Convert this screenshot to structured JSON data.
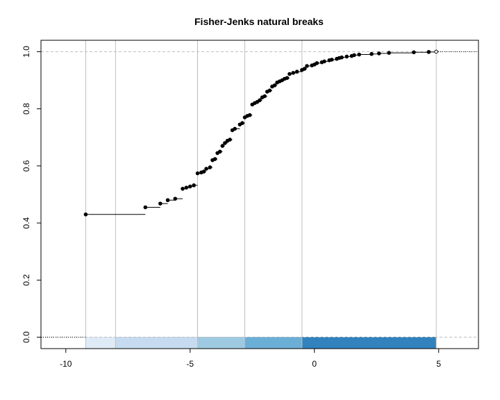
{
  "chart_data": {
    "type": "line",
    "subtype": "empirical-cdf-step",
    "title": "Fisher-Jenks natural breaks",
    "xlabel": "",
    "ylabel": "",
    "xlim": [
      -11,
      6.6
    ],
    "ylim": [
      -0.04,
      1.04
    ],
    "x_ticks": [
      -10,
      -5,
      0,
      5
    ],
    "x_tick_labels": [
      "-10",
      "-5",
      "0",
      "5"
    ],
    "y_ticks": [
      0.0,
      0.2,
      0.4,
      0.6,
      0.8,
      1.0
    ],
    "y_tick_labels": [
      "0.0",
      "0.2",
      "0.4",
      "0.6",
      "0.8",
      "1.0"
    ],
    "grid": false,
    "reference_lines_y": [
      0,
      1
    ],
    "breaks": [
      -9.2,
      -8.0,
      -4.7,
      -2.8,
      -0.5,
      4.9
    ],
    "class_colors": [
      "#deebf7",
      "#c6dbef",
      "#9ecae1",
      "#6baed6",
      "#3182bd"
    ],
    "colors": {
      "points": "#000000",
      "steps": "#000000",
      "breaks": "#bebebe",
      "reference": "#bebebe"
    },
    "series": [
      {
        "x": [
          -9.2,
          -6.8,
          -6.2,
          -5.9,
          -5.6,
          -5.3,
          -5.15,
          -5.0,
          -4.85,
          -4.7,
          -4.55,
          -4.45,
          -4.35,
          -4.2,
          -4.1,
          -4.0,
          -3.9,
          -3.8,
          -3.7,
          -3.6,
          -3.5,
          -3.4,
          -3.3,
          -3.2,
          -3.0,
          -2.9,
          -2.8,
          -2.7,
          -2.6,
          -2.5,
          -2.4,
          -2.3,
          -2.2,
          -2.1,
          -2.0,
          -1.9,
          -1.8,
          -1.7,
          -1.6,
          -1.5,
          -1.4,
          -1.3,
          -1.2,
          -1.1,
          -1.0,
          -0.85,
          -0.7,
          -0.5,
          -0.4,
          -0.3,
          -0.1,
          0.0,
          0.1,
          0.3,
          0.4,
          0.6,
          0.7,
          0.9,
          1.0,
          1.1,
          1.3,
          1.5,
          1.6,
          1.8,
          2.3,
          2.6,
          3.0,
          4.0,
          4.6,
          4.9
        ],
        "y": [
          0.43,
          0.455,
          0.468,
          0.48,
          0.485,
          0.52,
          0.524,
          0.528,
          0.532,
          0.574,
          0.577,
          0.58,
          0.59,
          0.595,
          0.62,
          0.624,
          0.645,
          0.65,
          0.67,
          0.68,
          0.688,
          0.692,
          0.725,
          0.73,
          0.745,
          0.75,
          0.77,
          0.775,
          0.778,
          0.815,
          0.82,
          0.824,
          0.83,
          0.84,
          0.844,
          0.86,
          0.864,
          0.878,
          0.882,
          0.892,
          0.896,
          0.9,
          0.905,
          0.908,
          0.922,
          0.926,
          0.93,
          0.936,
          0.94,
          0.95,
          0.952,
          0.955,
          0.96,
          0.963,
          0.966,
          0.97,
          0.972,
          0.975,
          0.978,
          0.98,
          0.983,
          0.985,
          0.988,
          0.99,
          0.992,
          0.994,
          0.996,
          0.998,
          0.999,
          1.0
        ]
      }
    ]
  }
}
